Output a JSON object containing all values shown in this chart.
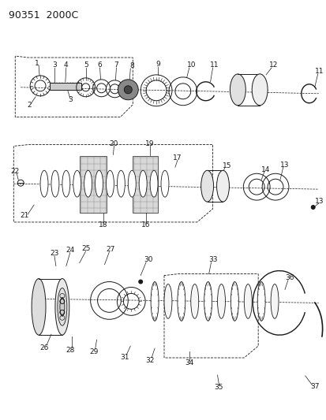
{
  "title": "90351  2000C",
  "bg_color": "#ffffff",
  "line_color": "#1a1a1a",
  "fig_width": 4.14,
  "fig_height": 5.33,
  "dpi": 100
}
